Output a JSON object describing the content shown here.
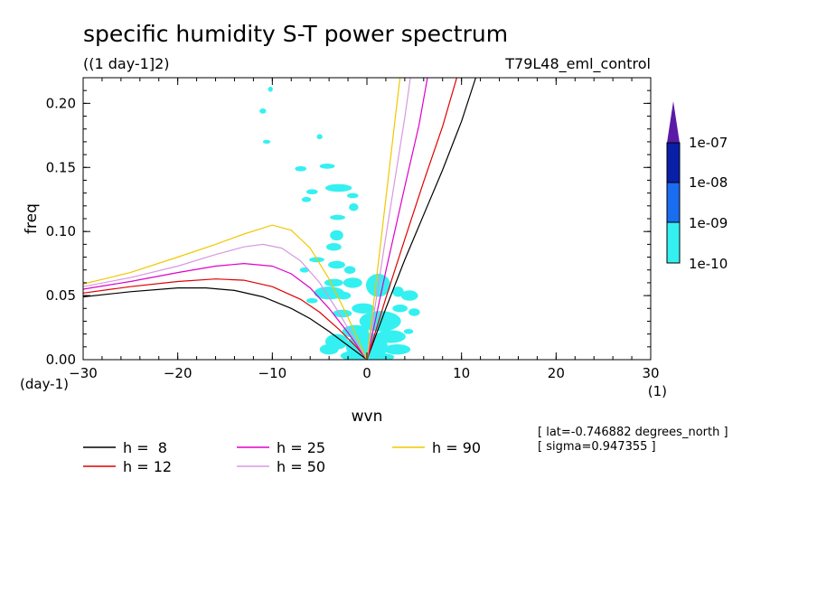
{
  "header": {
    "title": "specific humidity S-T power spectrum",
    "subtitle": "((1 day-1]2)",
    "experiment": "T79L48_eml_control"
  },
  "axes": {
    "x_label": "wvn",
    "y_label": "freq",
    "x_unit": "(1)",
    "y_unit": "(day-1)",
    "x_ticks": [
      "-30",
      "-20",
      "-10",
      "0",
      "10",
      "20",
      "30"
    ],
    "y_ticks": [
      "0.00",
      "0.05",
      "0.10",
      "0.15",
      "0.20"
    ]
  },
  "colorbar": {
    "labels": [
      "1e-07",
      "1e-08",
      "1e-09",
      "1e-10"
    ],
    "colors": [
      "#5a1aa6",
      "#0a1fa8",
      "#1a6cf0",
      "#35f0f0"
    ]
  },
  "legend": [
    {
      "label": "h =  8",
      "color": "#000000"
    },
    {
      "label": "h = 12",
      "color": "#e00000"
    },
    {
      "label": "h = 25",
      "color": "#e000c8"
    },
    {
      "label": "h = 50",
      "color": "#d898e0"
    },
    {
      "label": "h = 90",
      "color": "#f0c800"
    }
  ],
  "notes": {
    "lat": "[ lat=-0.746882 degrees_north ]",
    "sigma": "[ sigma=0.947355 ]"
  },
  "chart_data": {
    "type": "line",
    "title": "specific humidity S-T power spectrum",
    "xlabel": "wvn",
    "ylabel": "freq",
    "xlim": [
      -30,
      30
    ],
    "ylim": [
      0,
      0.22
    ],
    "series": [
      {
        "name": "h =  8",
        "color": "#000000",
        "x": [
          -30,
          -25,
          -20,
          -17,
          -14,
          -11,
          -8,
          -6,
          -4,
          -2,
          0,
          2,
          4,
          6,
          8,
          10,
          11.5
        ],
        "y": [
          0.049,
          0.053,
          0.056,
          0.056,
          0.054,
          0.049,
          0.04,
          0.032,
          0.022,
          0.011,
          0,
          0.04,
          0.078,
          0.113,
          0.148,
          0.186,
          0.22
        ]
      },
      {
        "name": "h = 12",
        "color": "#e00000",
        "x": [
          -30,
          -25,
          -20,
          -16,
          -13,
          -10,
          -7,
          -5,
          -3,
          -1,
          0,
          2,
          4,
          6,
          8,
          9.5
        ],
        "y": [
          0.052,
          0.057,
          0.061,
          0.063,
          0.062,
          0.057,
          0.047,
          0.037,
          0.024,
          0.009,
          0,
          0.048,
          0.094,
          0.139,
          0.182,
          0.22
        ]
      },
      {
        "name": "h = 25",
        "color": "#e000c8",
        "x": [
          -30,
          -25,
          -20,
          -16,
          -13,
          -10,
          -8,
          -6,
          -4,
          -2,
          0,
          2,
          4,
          5.5,
          6.4
        ],
        "y": [
          0.055,
          0.061,
          0.068,
          0.073,
          0.075,
          0.073,
          0.067,
          0.056,
          0.04,
          0.021,
          0,
          0.069,
          0.135,
          0.183,
          0.22
        ]
      },
      {
        "name": "h = 50",
        "color": "#d898e0",
        "x": [
          -30,
          -25,
          -20,
          -16,
          -13,
          -11,
          -9,
          -7,
          -5,
          -3,
          -1,
          0,
          2,
          4,
          4.6
        ],
        "y": [
          0.057,
          0.064,
          0.073,
          0.082,
          0.088,
          0.09,
          0.087,
          0.077,
          0.06,
          0.037,
          0.012,
          0,
          0.096,
          0.189,
          0.22
        ]
      },
      {
        "name": "h = 90",
        "color": "#f0c800",
        "x": [
          -30,
          -25,
          -20,
          -16,
          -13,
          -10,
          -8,
          -6,
          -4,
          -2,
          0,
          1.5,
          3,
          3.5
        ],
        "y": [
          0.059,
          0.068,
          0.08,
          0.09,
          0.098,
          0.105,
          0.101,
          0.087,
          0.063,
          0.033,
          0,
          0.094,
          0.189,
          0.22
        ]
      }
    ],
    "contour_level": "1e-10",
    "contour_blobs": [
      [
        -10.2,
        0.211,
        0.25,
        0.002
      ],
      [
        -11.0,
        0.194,
        0.35,
        0.002
      ],
      [
        -10.6,
        0.17,
        0.4,
        0.0015
      ],
      [
        -5.0,
        0.174,
        0.3,
        0.002
      ],
      [
        -7.0,
        0.149,
        0.6,
        0.002
      ],
      [
        -4.2,
        0.151,
        0.8,
        0.002
      ],
      [
        -3.0,
        0.134,
        1.4,
        0.003
      ],
      [
        -5.8,
        0.131,
        0.6,
        0.002
      ],
      [
        -1.5,
        0.128,
        0.6,
        0.002
      ],
      [
        -1.4,
        0.119,
        0.5,
        0.003
      ],
      [
        -6.4,
        0.125,
        0.5,
        0.002
      ],
      [
        -3.1,
        0.111,
        0.8,
        0.002
      ],
      [
        -3.2,
        0.097,
        0.7,
        0.004
      ],
      [
        -3.5,
        0.088,
        0.8,
        0.003
      ],
      [
        -3.2,
        0.074,
        0.9,
        0.003
      ],
      [
        -5.3,
        0.078,
        0.8,
        0.002
      ],
      [
        -1.8,
        0.07,
        0.6,
        0.003
      ],
      [
        -6.6,
        0.07,
        0.5,
        0.002
      ],
      [
        -1.5,
        0.06,
        1.0,
        0.004
      ],
      [
        -3.5,
        0.06,
        1.0,
        0.003
      ],
      [
        -4.0,
        0.052,
        1.6,
        0.005
      ],
      [
        -5.8,
        0.046,
        0.6,
        0.002
      ],
      [
        1.2,
        0.058,
        1.3,
        0.009
      ],
      [
        3.3,
        0.053,
        0.6,
        0.004
      ],
      [
        4.5,
        0.05,
        0.9,
        0.004
      ],
      [
        5.0,
        0.037,
        0.6,
        0.003
      ],
      [
        3.5,
        0.04,
        0.8,
        0.003
      ],
      [
        -0.4,
        0.04,
        1.2,
        0.004
      ],
      [
        -2.6,
        0.036,
        1.0,
        0.003
      ],
      [
        1.4,
        0.03,
        2.2,
        0.008
      ],
      [
        -1.2,
        0.022,
        1.4,
        0.005
      ],
      [
        2.5,
        0.018,
        1.6,
        0.005
      ],
      [
        4.4,
        0.022,
        0.5,
        0.002
      ],
      [
        -3.2,
        0.014,
        1.2,
        0.006
      ],
      [
        0.0,
        0.01,
        2.2,
        0.011
      ],
      [
        -4.0,
        0.008,
        1.0,
        0.004
      ],
      [
        3.2,
        0.008,
        1.4,
        0.004
      ],
      [
        -1.2,
        0.003,
        1.6,
        0.004
      ],
      [
        1.5,
        0.002,
        1.4,
        0.003
      ],
      [
        -2.5,
        0.05,
        0.8,
        0.003
      ]
    ]
  }
}
